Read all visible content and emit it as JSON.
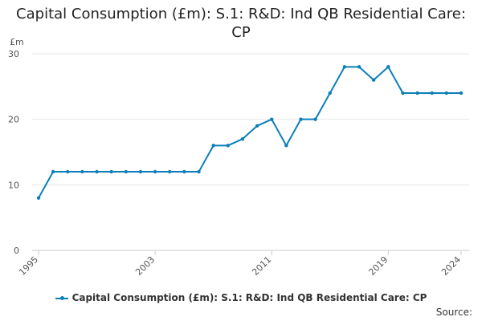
{
  "chart_data": {
    "type": "line",
    "title": "Capital Consumption (£m): S.1: R&D: Ind QB Residential Care: CP",
    "y_unit": "£m",
    "xlabel": "",
    "ylabel": "",
    "ylim": [
      0,
      30
    ],
    "y_ticks": [
      0,
      10,
      20,
      30
    ],
    "x_tick_labels": [
      "1995",
      "2003",
      "2011",
      "2019",
      "2024"
    ],
    "x": [
      1995,
      1996,
      1997,
      1998,
      1999,
      2000,
      2001,
      2002,
      2003,
      2004,
      2005,
      2006,
      2007,
      2008,
      2009,
      2010,
      2011,
      2012,
      2013,
      2014,
      2015,
      2016,
      2017,
      2018,
      2019,
      2020,
      2021,
      2022,
      2023,
      2024
    ],
    "series": [
      {
        "name": "Capital Consumption (£m): S.1: R&D: Ind QB Residential Care: CP",
        "color": "#0d7fb8",
        "values": [
          8,
          12,
          12,
          12,
          12,
          12,
          12,
          12,
          12,
          12,
          12,
          12,
          16,
          16,
          17,
          19,
          20,
          16,
          20,
          20,
          24,
          28,
          28,
          26,
          28,
          24,
          24,
          24,
          24,
          24
        ]
      }
    ],
    "grid": true,
    "legend_position": "bottom"
  },
  "footer": {
    "source_label": "Source:"
  }
}
